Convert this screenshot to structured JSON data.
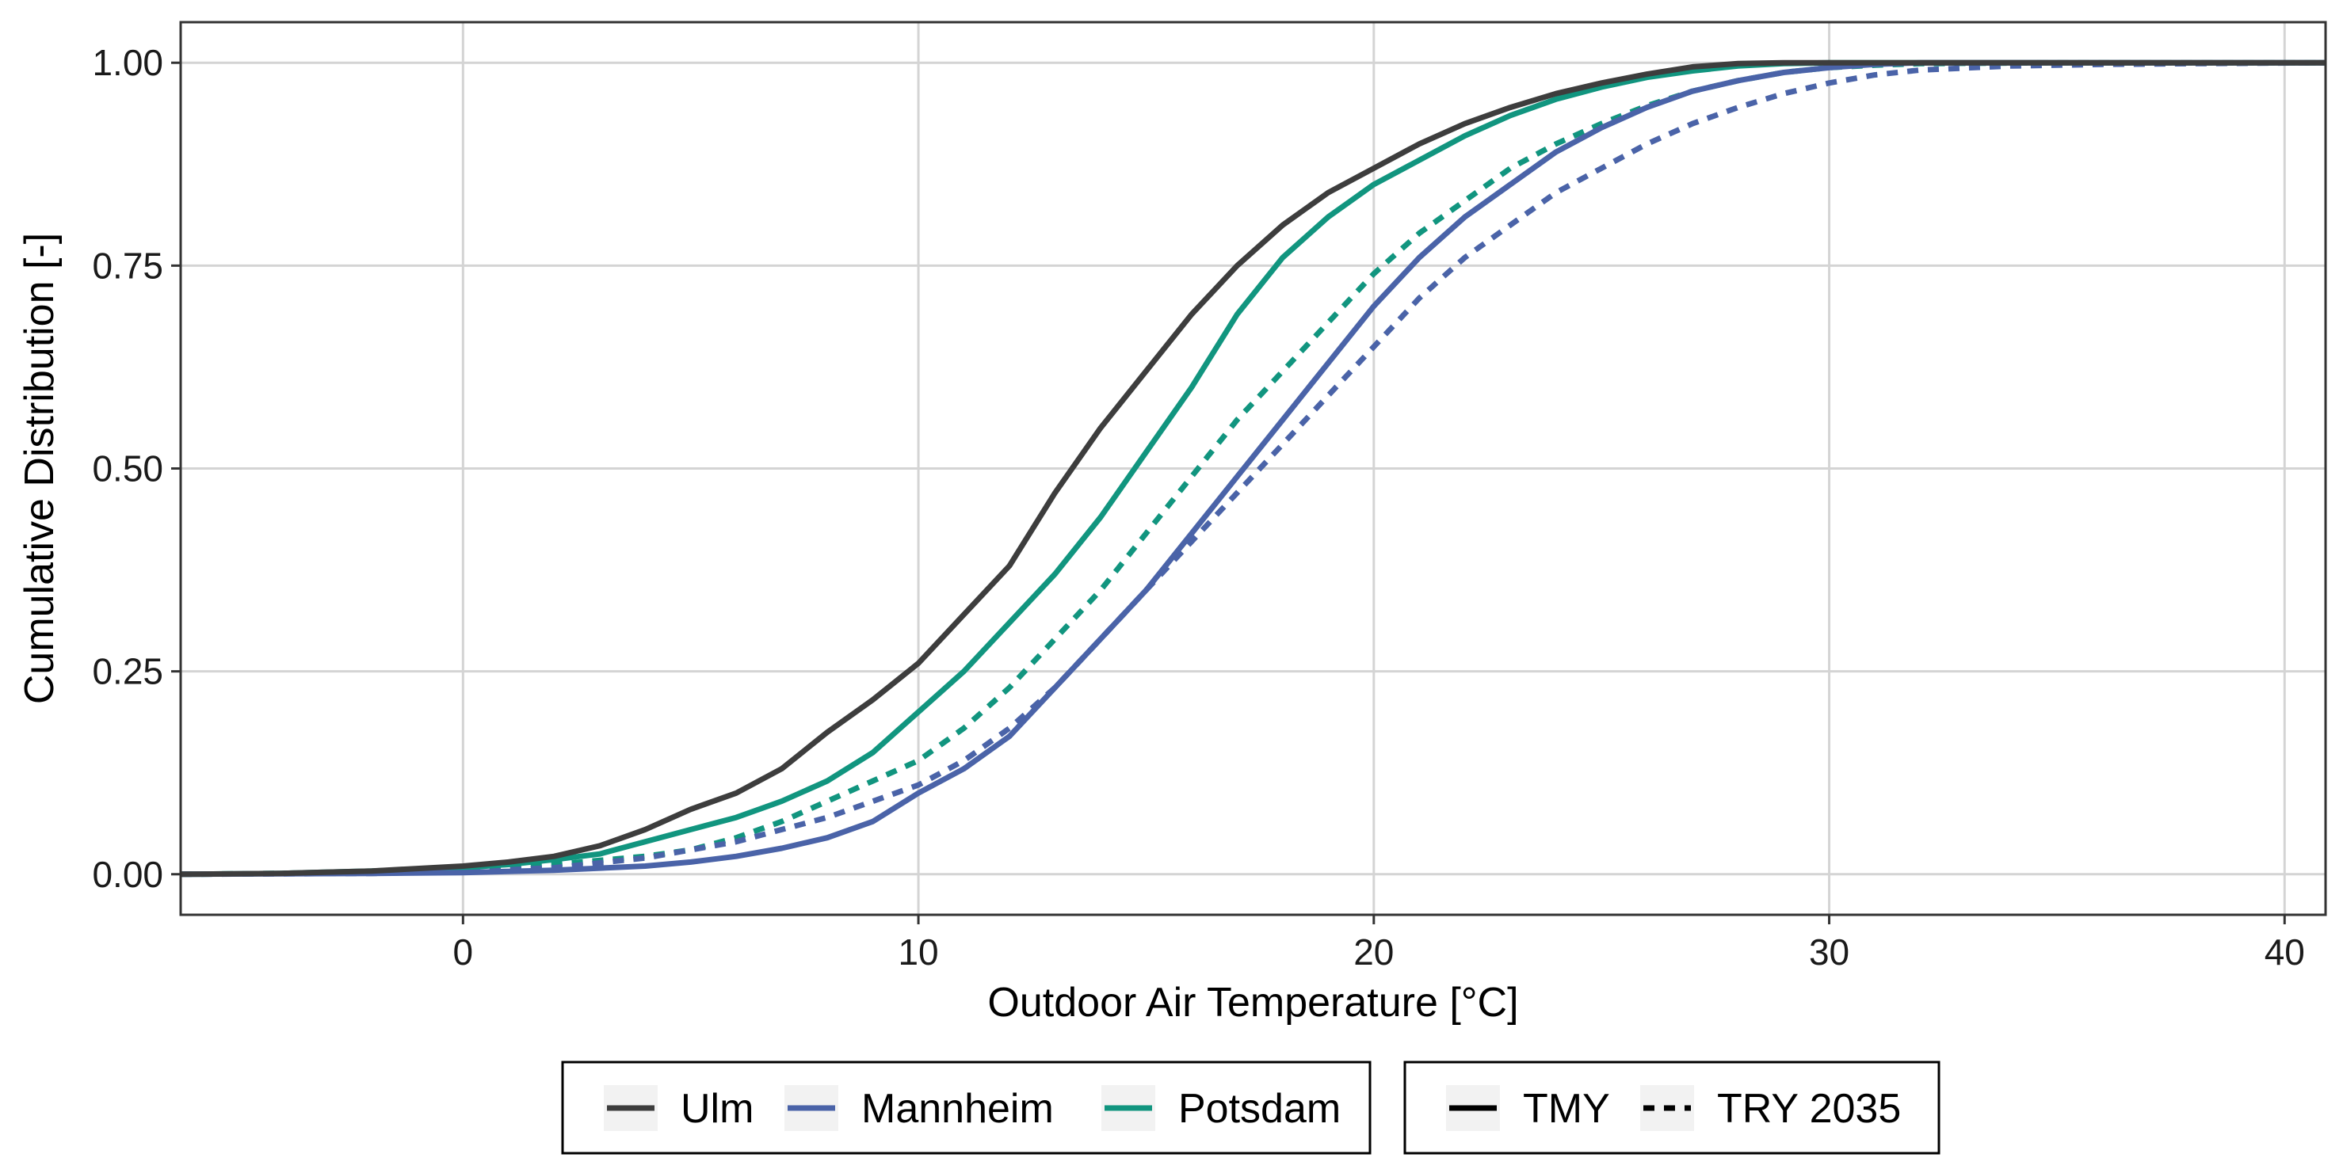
{
  "chart_data": {
    "type": "line",
    "title": "",
    "xlabel": "Outdoor Air Temperature [°C]",
    "ylabel": "Cumulative Distribution [-]",
    "xlim": [
      -6.2,
      40.9
    ],
    "ylim": [
      -0.05,
      1.05
    ],
    "xticks": [
      0,
      10,
      20,
      30,
      40
    ],
    "yticks": [
      0.0,
      0.25,
      0.5,
      0.75,
      1.0
    ],
    "xtick_labels": [
      "0",
      "10",
      "20",
      "30",
      "40"
    ],
    "ytick_labels": [
      "0.00",
      "0.25",
      "0.50",
      "0.75",
      "1.00"
    ],
    "grid": true,
    "legend_position": "bottom",
    "legend_location_title": "",
    "legend_dataset_title": "",
    "locations": [
      {
        "name": "Ulm",
        "color": "#3d3d3d"
      },
      {
        "name": "Mannheim",
        "color": "#4a63a8"
      },
      {
        "name": "Potsdam",
        "color": "#11957f"
      }
    ],
    "datasets": [
      {
        "name": "TMY",
        "linestyle": "solid"
      },
      {
        "name": "TRY 2035",
        "linestyle": "dashed"
      }
    ],
    "series": [
      {
        "name": "Ulm TMY",
        "location": "Ulm",
        "dataset": "TMY",
        "x": [
          -6.2,
          -4,
          -2,
          0,
          1,
          2,
          3,
          4,
          5,
          6,
          7,
          8,
          9,
          10,
          11,
          12,
          13,
          14,
          15,
          16,
          17,
          18,
          19,
          20,
          21,
          22,
          23,
          24,
          25,
          26,
          27,
          28,
          29,
          30,
          40.9
        ],
        "y": [
          0,
          0.001,
          0.004,
          0.01,
          0.015,
          0.022,
          0.035,
          0.055,
          0.08,
          0.1,
          0.13,
          0.175,
          0.215,
          0.26,
          0.32,
          0.38,
          0.47,
          0.55,
          0.62,
          0.69,
          0.75,
          0.8,
          0.84,
          0.87,
          0.9,
          0.925,
          0.945,
          0.962,
          0.975,
          0.986,
          0.995,
          0.999,
          1,
          1,
          1
        ]
      },
      {
        "name": "Ulm TRY 2035",
        "location": "Ulm",
        "dataset": "TRY 2035",
        "x": [
          -6.2,
          40.9
        ],
        "y": [
          null,
          null
        ]
      },
      {
        "name": "Mannheim TMY",
        "location": "Mannheim",
        "dataset": "TMY",
        "x": [
          -6.2,
          -2,
          0,
          2,
          4,
          5,
          6,
          7,
          8,
          9,
          10,
          11,
          12,
          13,
          14,
          15,
          16,
          17,
          18,
          19,
          20,
          21,
          22,
          23,
          24,
          25,
          26,
          27,
          28,
          29,
          30,
          31,
          32,
          40.9
        ],
        "y": [
          0,
          0.001,
          0.002,
          0.005,
          0.01,
          0.015,
          0.022,
          0.032,
          0.045,
          0.065,
          0.1,
          0.13,
          0.17,
          0.23,
          0.29,
          0.35,
          0.42,
          0.49,
          0.56,
          0.63,
          0.7,
          0.76,
          0.81,
          0.85,
          0.89,
          0.92,
          0.945,
          0.965,
          0.978,
          0.988,
          0.994,
          0.998,
          1,
          1
        ]
      },
      {
        "name": "Mannheim TRY 2035",
        "location": "Mannheim",
        "dataset": "TRY 2035",
        "x": [
          -6.2,
          -2,
          0,
          2,
          4,
          6,
          7,
          8,
          9,
          10,
          11,
          12,
          13,
          14,
          15,
          16,
          17,
          18,
          19,
          20,
          21,
          22,
          23,
          24,
          25,
          26,
          27,
          28,
          29,
          30,
          31,
          32,
          34,
          36,
          38,
          40.9
        ],
        "y": [
          0,
          0.001,
          0.003,
          0.008,
          0.02,
          0.04,
          0.055,
          0.07,
          0.09,
          0.11,
          0.14,
          0.18,
          0.23,
          0.29,
          0.35,
          0.41,
          0.47,
          0.53,
          0.59,
          0.65,
          0.71,
          0.76,
          0.8,
          0.84,
          0.87,
          0.9,
          0.925,
          0.945,
          0.962,
          0.975,
          0.985,
          0.991,
          0.996,
          0.998,
          0.999,
          1
        ]
      },
      {
        "name": "Potsdam TMY",
        "location": "Potsdam",
        "dataset": "TMY",
        "x": [
          -6.2,
          -4,
          -2,
          0,
          1,
          2,
          3,
          4,
          5,
          6,
          7,
          8,
          9,
          10,
          11,
          12,
          13,
          14,
          15,
          16,
          17,
          18,
          19,
          20,
          21,
          22,
          23,
          24,
          25,
          26,
          27,
          28,
          29,
          30,
          40.9
        ],
        "y": [
          0,
          0.001,
          0.004,
          0.008,
          0.012,
          0.018,
          0.025,
          0.04,
          0.055,
          0.07,
          0.09,
          0.115,
          0.15,
          0.2,
          0.25,
          0.31,
          0.37,
          0.44,
          0.52,
          0.6,
          0.69,
          0.76,
          0.81,
          0.85,
          0.88,
          0.91,
          0.935,
          0.955,
          0.97,
          0.982,
          0.99,
          0.996,
          0.999,
          1,
          1
        ]
      },
      {
        "name": "Potsdam TRY 2035",
        "location": "Potsdam",
        "dataset": "TRY 2035",
        "x": [
          -6.2,
          -4,
          -2,
          0,
          2,
          4,
          5,
          6,
          7,
          8,
          9,
          10,
          11,
          12,
          13,
          14,
          15,
          16,
          17,
          18,
          19,
          20,
          21,
          22,
          23,
          24,
          25,
          26,
          27,
          28,
          29,
          30,
          31,
          32,
          35,
          40.9
        ],
        "y": [
          0,
          0.001,
          0.003,
          0.006,
          0.012,
          0.022,
          0.03,
          0.045,
          0.065,
          0.09,
          0.115,
          0.14,
          0.18,
          0.23,
          0.29,
          0.35,
          0.42,
          0.49,
          0.56,
          0.62,
          0.68,
          0.74,
          0.79,
          0.83,
          0.87,
          0.9,
          0.925,
          0.947,
          0.965,
          0.978,
          0.988,
          0.994,
          0.997,
          0.999,
          1,
          1
        ]
      }
    ]
  }
}
